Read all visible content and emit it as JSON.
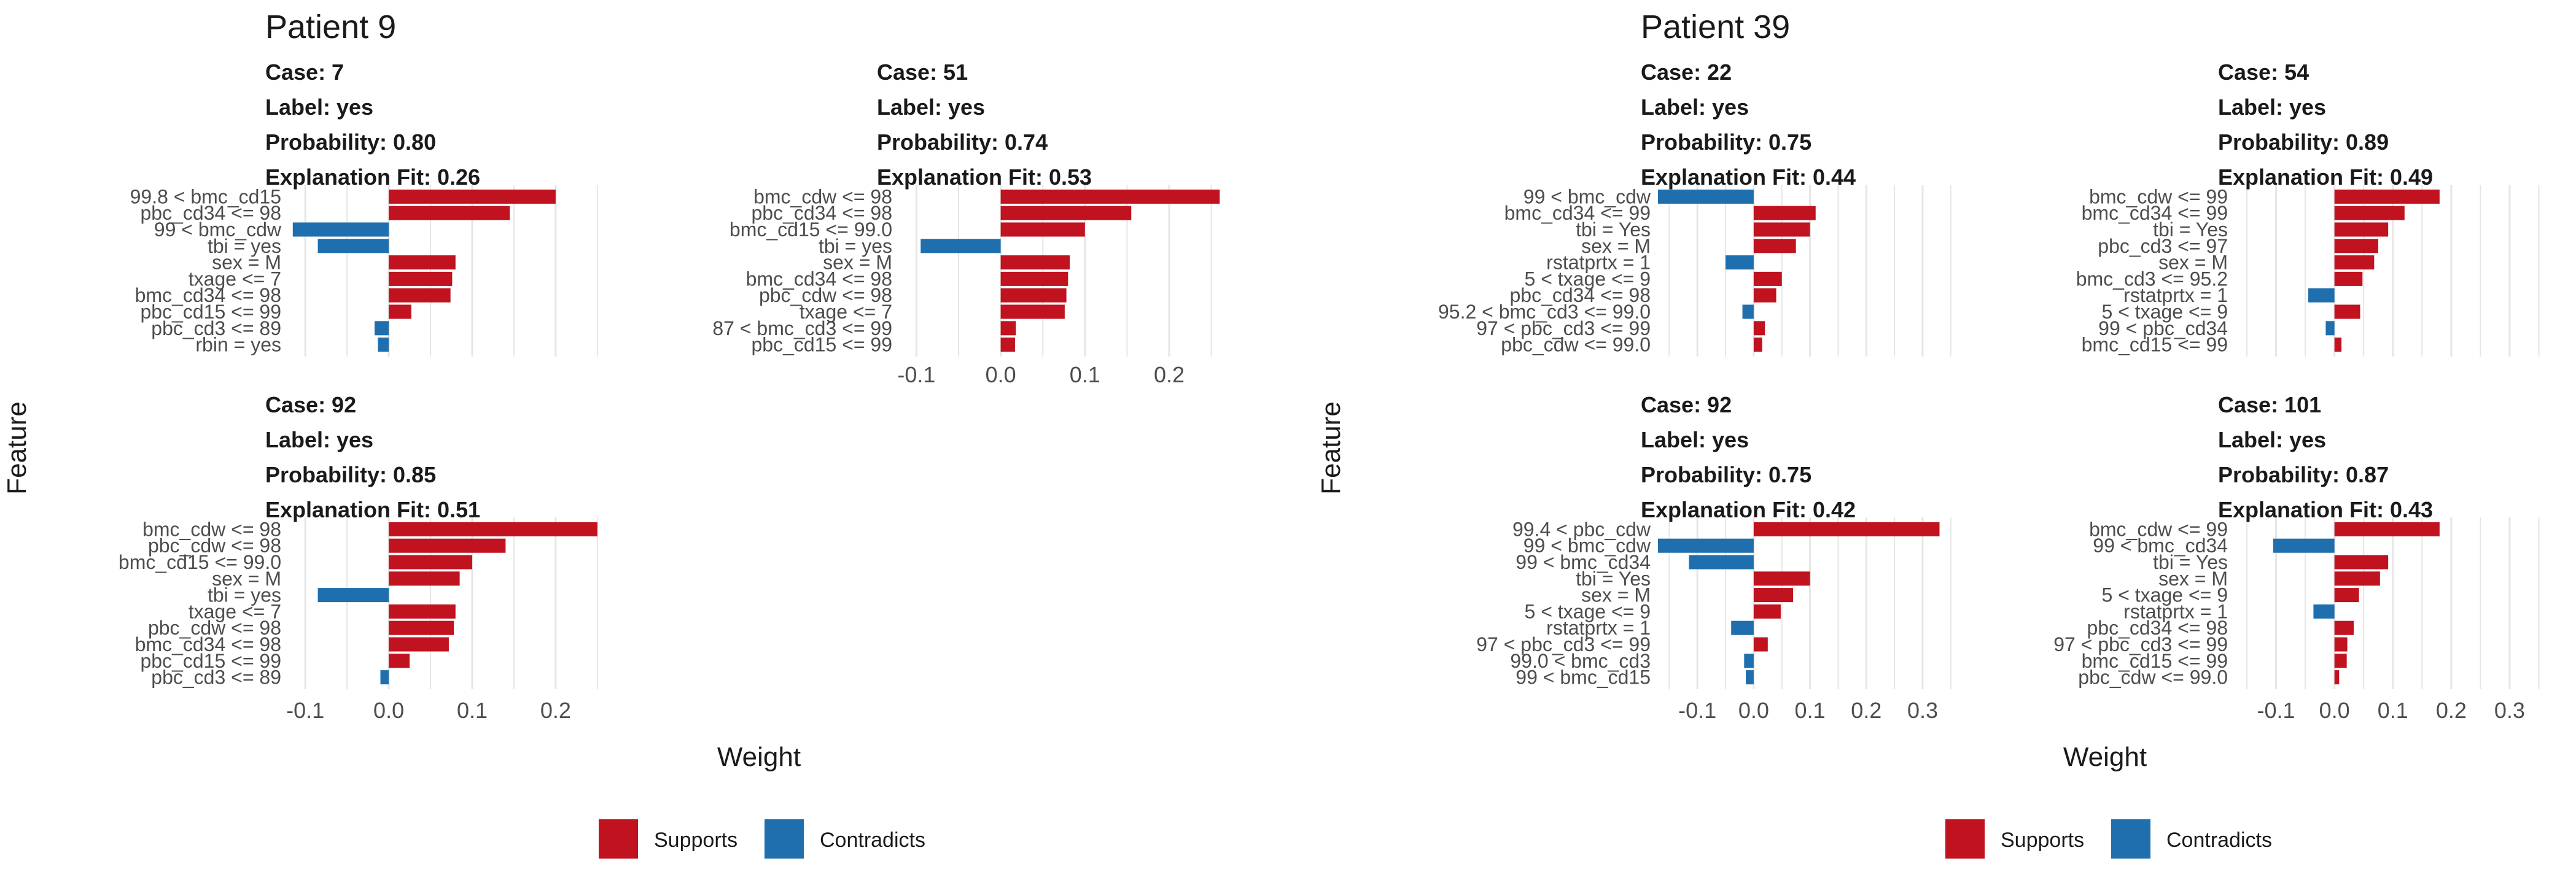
{
  "colors": {
    "supports": "#c1121f",
    "contradicts": "#1f6fae",
    "grid": "#e6e6e6",
    "text": "#1a1a1a",
    "label": "#4d4d4d"
  },
  "chart_data": [
    {
      "type": "bar",
      "group_title": "Patient 9",
      "xlabel": "Weight",
      "ylabel": "Feature",
      "legend": {
        "items": [
          "Supports",
          "Contradicts"
        ],
        "position": "bottom"
      },
      "panels": [
        {
          "case": "Case: 7",
          "label": "Label: yes",
          "probability": "Probability: 0.80",
          "fit": "Explanation Fit: 0.26",
          "xlim": [
            -0.12,
            0.27
          ],
          "xticks": [
            -0.1,
            0.0,
            0.1,
            0.2
          ],
          "xtick_labels": [
            "-0.1",
            "0.0",
            "0.1",
            "0.2"
          ],
          "show_xaxis": false,
          "features": [
            "99.8 < bmc_cd15",
            "pbc_cd34 <= 98",
            "99 < bmc_cdw",
            "tbi = yes",
            "sex = M",
            "txage <= 7",
            "bmc_cd34 <= 98",
            "pbc_cd15 <= 99",
            "pbc_cd3 <= 89",
            "rbin = yes"
          ],
          "values": [
            0.2,
            0.145,
            -0.115,
            -0.085,
            0.08,
            0.076,
            0.074,
            0.027,
            -0.017,
            -0.013
          ]
        },
        {
          "case": "Case: 51",
          "label": "Label: yes",
          "probability": "Probability: 0.74",
          "fit": "Explanation Fit: 0.53",
          "xlim": [
            -0.12,
            0.27
          ],
          "xticks": [
            -0.1,
            0.0,
            0.1,
            0.2
          ],
          "xtick_labels": [
            "-0.1",
            "0.0",
            "0.1",
            "0.2"
          ],
          "show_xaxis": true,
          "features": [
            "bmc_cdw <= 98",
            "pbc_cd34 <= 98",
            "bmc_cd15 <= 99.0",
            "tbi = yes",
            "sex = M",
            "bmc_cd34 <= 98",
            "pbc_cdw <= 98",
            "txage <= 7",
            "87 < bmc_cd3 <= 99",
            "pbc_cd15 <= 99"
          ],
          "values": [
            0.26,
            0.155,
            0.1,
            -0.095,
            0.082,
            0.08,
            0.078,
            0.076,
            0.018,
            0.017
          ]
        },
        {
          "case": "Case: 92",
          "label": "Label: yes",
          "probability": "Probability: 0.85",
          "fit": "Explanation Fit: 0.51",
          "xlim": [
            -0.12,
            0.27
          ],
          "xticks": [
            -0.1,
            0.0,
            0.1,
            0.2
          ],
          "xtick_labels": [
            "-0.1",
            "0.0",
            "0.1",
            "0.2"
          ],
          "show_xaxis": true,
          "features": [
            "bmc_cdw <= 98",
            "pbc_cdw <= 98",
            "bmc_cd15 <= 99.0",
            "sex = M",
            "tbi = yes",
            "txage <= 7",
            "pbc_cdw <= 98",
            "bmc_cd34 <= 98",
            "pbc_cd15 <= 99",
            "pbc_cd3 <= 89"
          ],
          "values": [
            0.25,
            0.14,
            0.1,
            0.085,
            -0.085,
            0.08,
            0.078,
            0.072,
            0.025,
            -0.01
          ]
        }
      ]
    },
    {
      "type": "bar",
      "group_title": "Patient 39",
      "xlabel": "Weight",
      "ylabel": "Feature",
      "legend": {
        "items": [
          "Supports",
          "Contradicts"
        ],
        "position": "bottom"
      },
      "panels": [
        {
          "case": "Case: 22",
          "label": "Label: yes",
          "probability": "Probability: 0.75",
          "fit": "Explanation Fit: 0.44",
          "xlim": [
            -0.17,
            0.36
          ],
          "xticks": [
            -0.1,
            0.0,
            0.1,
            0.2,
            0.3
          ],
          "xtick_labels": [
            "-0.1",
            "0.0",
            "0.1",
            "0.2",
            "0.3"
          ],
          "show_xaxis": false,
          "features": [
            "99 < bmc_cdw",
            "bmc_cd34 <= 99",
            "tbi = Yes",
            "sex = M",
            "rstatprtx = 1",
            "5 < txage <= 9",
            "pbc_cd34 <= 98",
            "95.2 < bmc_cd3 <= 99.0",
            "97 < pbc_cd3 <= 99",
            "pbc_cdw <= 99.0"
          ],
          "values": [
            -0.17,
            0.11,
            0.1,
            0.075,
            -0.05,
            0.05,
            0.04,
            -0.02,
            0.02,
            0.015
          ]
        },
        {
          "case": "Case: 54",
          "label": "Label: yes",
          "probability": "Probability: 0.89",
          "fit": "Explanation Fit: 0.49",
          "xlim": [
            -0.17,
            0.36
          ],
          "xticks": [
            -0.1,
            0.0,
            0.1,
            0.2,
            0.3
          ],
          "xtick_labels": [
            "-0.1",
            "0.0",
            "0.1",
            "0.2",
            "0.3"
          ],
          "show_xaxis": false,
          "features": [
            "bmc_cdw <= 99",
            "bmc_cd34 <= 99",
            "tbi = Yes",
            "pbc_cd3 <= 97",
            "sex = M",
            "bmc_cd3 <= 95.2",
            "rstatprtx = 1",
            "5 < txage <= 9",
            "99 < pbc_cd34",
            "bmc_cd15 <= 99"
          ],
          "values": [
            0.18,
            0.12,
            0.092,
            0.075,
            0.068,
            0.048,
            -0.045,
            0.044,
            -0.015,
            0.012
          ]
        },
        {
          "case": "Case: 92",
          "label": "Label: yes",
          "probability": "Probability: 0.75",
          "fit": "Explanation Fit: 0.42",
          "xlim": [
            -0.17,
            0.36
          ],
          "xticks": [
            -0.1,
            0.0,
            0.1,
            0.2,
            0.3
          ],
          "xtick_labels": [
            "-0.1",
            "0.0",
            "0.1",
            "0.2",
            "0.3"
          ],
          "show_xaxis": true,
          "features": [
            "99.4 < pbc_cdw",
            "99 < bmc_cdw",
            "99 < bmc_cd34",
            "tbi = Yes",
            "sex = M",
            "5 < txage <= 9",
            "rstatprtx = 1",
            "97 < pbc_cd3 <= 99",
            "99.0 < bmc_cd3",
            "99 < bmc_cd15"
          ],
          "values": [
            0.33,
            -0.17,
            -0.115,
            0.1,
            0.07,
            0.048,
            -0.04,
            0.025,
            -0.017,
            -0.014
          ]
        },
        {
          "case": "Case: 101",
          "label": "Label: yes",
          "probability": "Probability: 0.87",
          "fit": "Explanation Fit: 0.43",
          "xlim": [
            -0.17,
            0.36
          ],
          "xticks": [
            -0.1,
            0.0,
            0.1,
            0.2,
            0.3
          ],
          "xtick_labels": [
            "-0.1",
            "0.0",
            "0.1",
            "0.2",
            "0.3"
          ],
          "show_xaxis": true,
          "features": [
            "bmc_cdw <= 99",
            "99 < bmc_cd34",
            "tbi = Yes",
            "sex = M",
            "5 < txage <= 9",
            "rstatprtx = 1",
            "pbc_cd34 <= 98",
            "97 < pbc_cd3 <= 99",
            "bmc_cd15 <= 99",
            "pbc_cdw <= 99.0"
          ],
          "values": [
            0.18,
            -0.105,
            0.092,
            0.078,
            0.042,
            -0.036,
            0.033,
            0.022,
            0.021,
            0.008
          ]
        }
      ]
    }
  ]
}
